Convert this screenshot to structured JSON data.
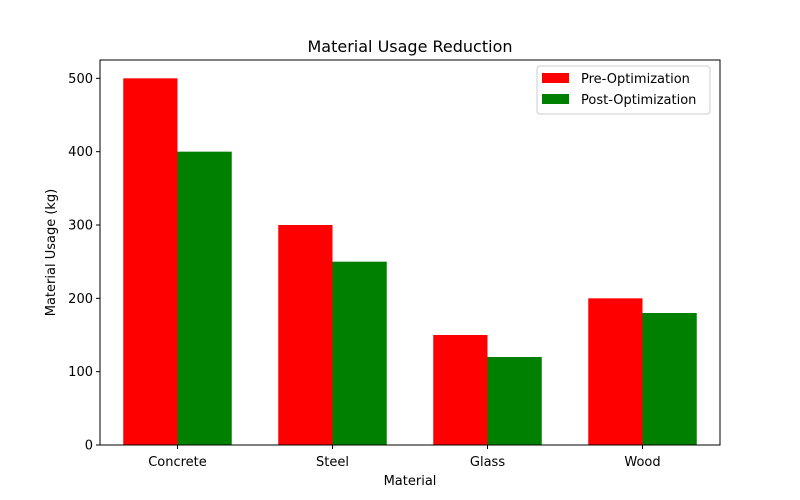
{
  "chart_data": {
    "type": "bar",
    "title": "Material Usage Reduction",
    "xlabel": "Material",
    "ylabel": "Material Usage (kg)",
    "categories": [
      "Concrete",
      "Steel",
      "Glass",
      "Wood"
    ],
    "series": [
      {
        "name": "Pre-Optimization",
        "color": "#ff0000",
        "values": [
          500,
          300,
          150,
          200
        ]
      },
      {
        "name": "Post-Optimization",
        "color": "#008000",
        "values": [
          400,
          250,
          120,
          180
        ]
      }
    ],
    "ylim": [
      0,
      525
    ],
    "yticks": [
      0,
      100,
      200,
      300,
      400,
      500
    ],
    "legend_position": "top-right",
    "grid": false
  }
}
